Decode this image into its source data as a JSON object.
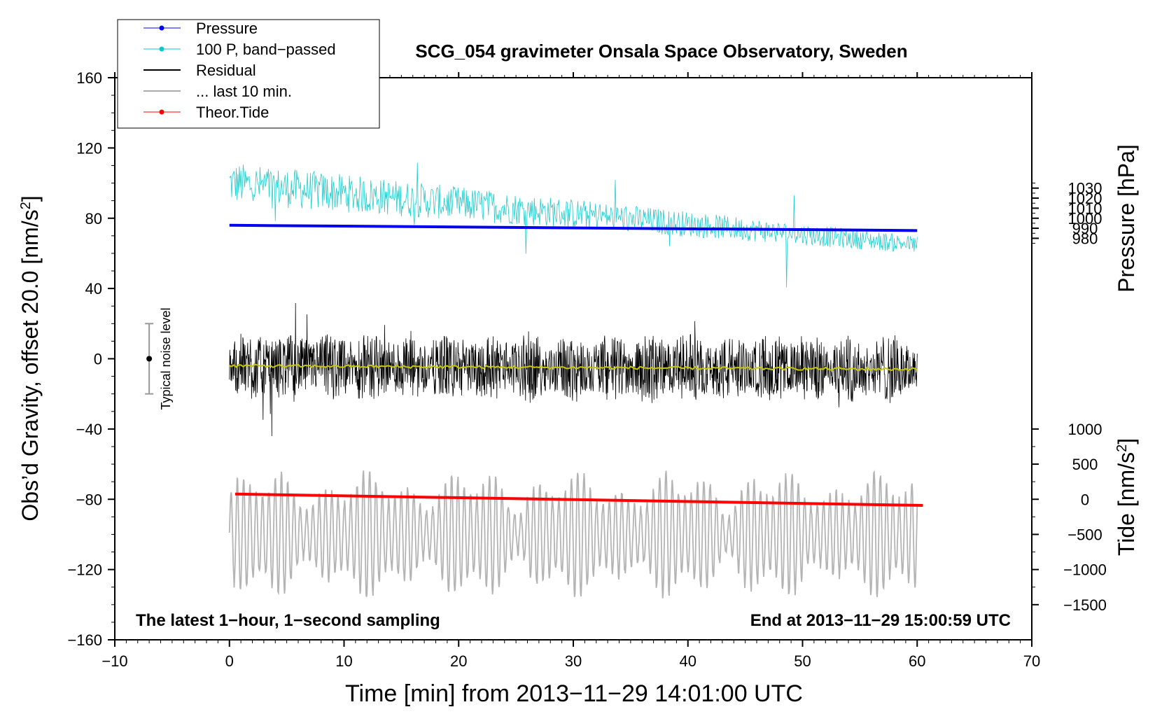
{
  "chart_data": {
    "type": "line",
    "title": "SCG_054 gravimeter Onsala Space Observatory, Sweden",
    "xlabel": "Time [min] from 2013−11−29 14:01:00 UTC",
    "ylabel_left": "Obs’d Gravity, offset 20.0 [nm/s",
    "ylabel_left_sup": "2",
    "ylabel_left_end": "]",
    "ylabel_pressure": "Pressure [hPa]",
    "ylabel_tide": "Tide [nm/s",
    "ylabel_tide_sup": "2",
    "ylabel_tide_end": "]",
    "xlim": [
      -10,
      70
    ],
    "ylim": [
      -160,
      160
    ],
    "x_ticks": [
      -10,
      0,
      10,
      20,
      30,
      40,
      50,
      60,
      70
    ],
    "x_tick_labels": [
      "−10",
      "0",
      "10",
      "20",
      "30",
      "40",
      "50",
      "60",
      "70"
    ],
    "y_ticks": [
      -160,
      -120,
      -80,
      -40,
      0,
      40,
      80,
      120,
      160
    ],
    "y_tick_labels": [
      "−160",
      "−120",
      "−80",
      "−40",
      "0",
      "40",
      "80",
      "120",
      "160"
    ],
    "pressure_ticks": [
      980,
      990,
      1000,
      1010,
      1020,
      1030
    ],
    "pressure_tick_labels": [
      "980",
      "990",
      "1000",
      "1010",
      "1020",
      "1030"
    ],
    "pressure_axis_y_at_1000": 80,
    "pressure_units_per_40": 70,
    "tide_ticks": [
      -1500,
      -1000,
      -500,
      0,
      500,
      1000
    ],
    "tide_tick_labels": [
      "−1500",
      "−1000",
      "−500",
      "0",
      "500",
      "1000"
    ],
    "tide_axis_y_at_0": -80,
    "tide_units_per_40": 1000,
    "legend": [
      {
        "label": "Pressure",
        "color": "#0000ff",
        "marker": true
      },
      {
        "label": "100 P, band−passed",
        "color": "#00cccc",
        "marker": true
      },
      {
        "label": "Residual",
        "color": "#000000",
        "marker": false
      },
      {
        "label": "... last 10 min.",
        "color": "#aaaaaa",
        "marker": false
      },
      {
        "label": "Theor.Tide",
        "color": "#ff0000",
        "marker": true
      }
    ],
    "annotation_left": "The latest 1−hour, 1−second sampling",
    "annotation_right": "End at 2013−11−29 15:00:59 UTC",
    "noise_label": "Typical noise level",
    "noise_bar": {
      "x": -7,
      "center": 0,
      "half_range": 20
    },
    "series": [
      {
        "name": "Pressure",
        "color": "#0000ee",
        "x": [
          0,
          60
        ],
        "y": [
          76,
          73
        ],
        "width": 4
      },
      {
        "name": "100 P, band-passed",
        "color": "#22cccc",
        "trend_x": [
          0,
          60
        ],
        "trend_y": [
          100,
          65
        ],
        "amp_start": 12,
        "amp_end": 5,
        "width": 0.8
      },
      {
        "name": "Residual",
        "color": "#000000",
        "trend_x": [
          0,
          60
        ],
        "trend_y": [
          -4,
          -6
        ],
        "amp": 14,
        "width": 0.8
      },
      {
        "name": "Residual smoothed",
        "color": "#c8c800",
        "x": [
          0,
          60
        ],
        "y": [
          -4,
          -6
        ],
        "width": 2
      },
      {
        "name": "... last 10 min.",
        "color": "#b4b4b4",
        "trend_x": [
          0,
          60
        ],
        "trend_y": [
          -100,
          -100
        ],
        "amp": 18,
        "width": 1.8
      },
      {
        "name": "Theor.Tide",
        "color": "#ff0000",
        "x": [
          0.5,
          60.5
        ],
        "y": [
          -77,
          -83.5
        ],
        "width": 4
      }
    ]
  }
}
